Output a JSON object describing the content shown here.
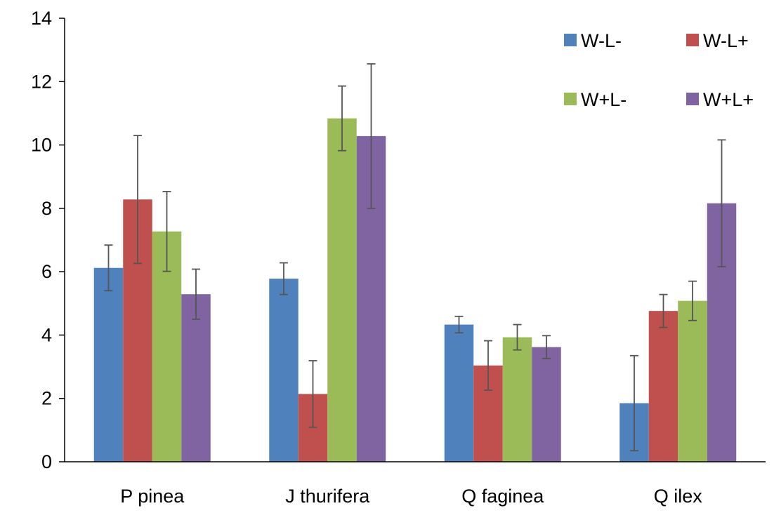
{
  "chart_data": {
    "type": "bar",
    "title": "",
    "xlabel": "",
    "ylabel": "",
    "ylim": [
      0,
      14
    ],
    "yticks": [
      "0",
      "2",
      "4",
      "6",
      "8",
      "10",
      "12",
      "14"
    ],
    "grid": false,
    "legend": "top-right",
    "categories": [
      "P pinea",
      "J thurifera",
      "Q faginea",
      "Q ilex"
    ],
    "series": [
      {
        "name": "W-L-",
        "color": "#4f81bd",
        "values": [
          6.12,
          5.78,
          4.33,
          1.85
        ],
        "errors": [
          0.72,
          0.5,
          0.26,
          1.5
        ]
      },
      {
        "name": "W-L+",
        "color": "#c0504d",
        "values": [
          8.28,
          2.14,
          3.04,
          4.76
        ],
        "errors": [
          2.02,
          1.05,
          0.78,
          0.52
        ]
      },
      {
        "name": "W+L-",
        "color": "#9bbb59",
        "values": [
          7.27,
          10.84,
          3.93,
          5.08
        ],
        "errors": [
          1.26,
          1.02,
          0.4,
          0.62
        ]
      },
      {
        "name": "W+L+",
        "color": "#8064a2",
        "values": [
          5.29,
          10.28,
          3.62,
          8.16
        ],
        "errors": [
          0.79,
          2.28,
          0.36,
          2.0
        ]
      }
    ]
  }
}
